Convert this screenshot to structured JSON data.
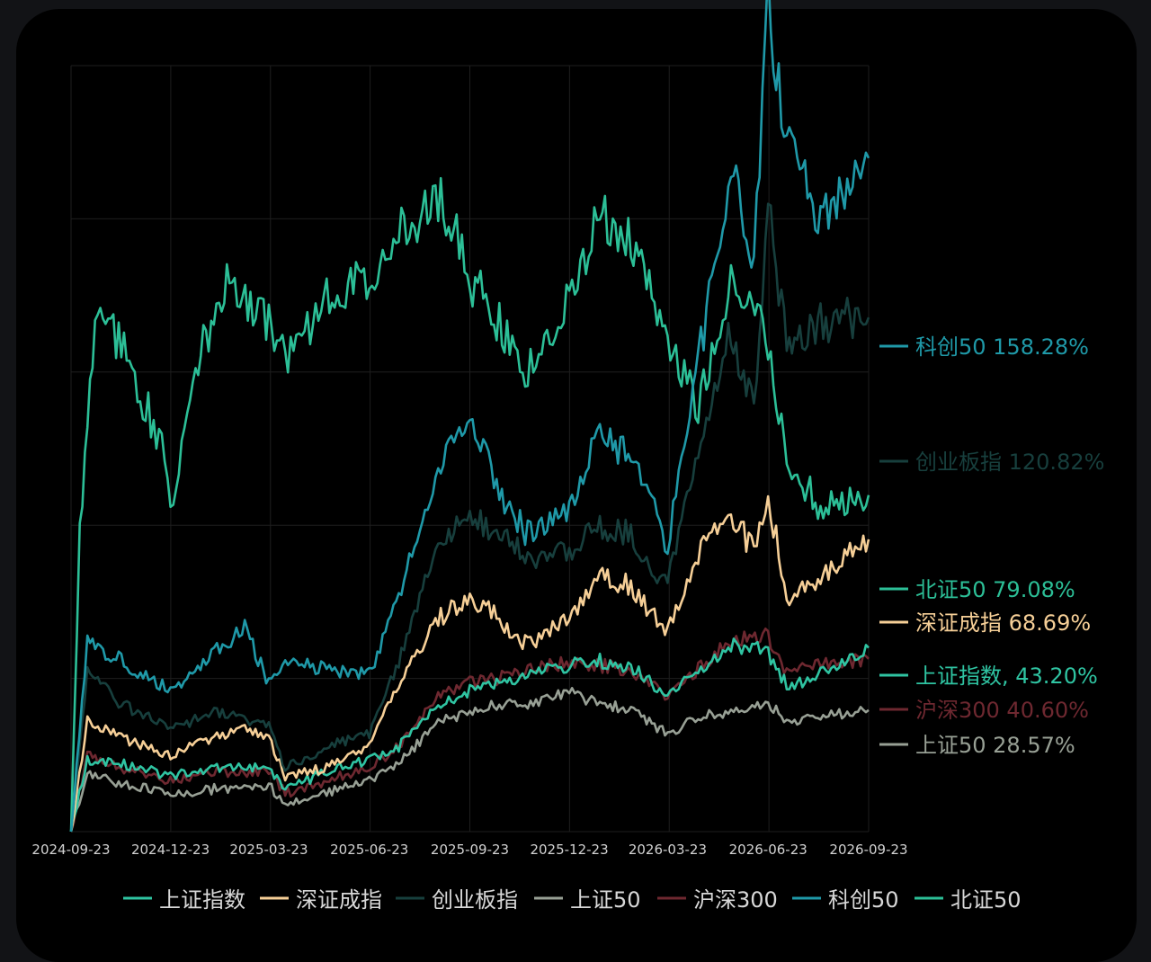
{
  "chart_data": {
    "type": "line",
    "title": "",
    "xlabel": "",
    "ylabel": "",
    "unit": "%",
    "x_start": "2024-09-23",
    "x_end": "2026-09-23",
    "x_ticks": [
      "2024-09-23",
      "2024-12-23",
      "2025-03-23",
      "2025-06-23",
      "2025-09-23",
      "2025-12-23",
      "2026-03-23",
      "2026-06-23",
      "2026-09-23"
    ],
    "ylim": [
      0,
      180
    ],
    "grid": true,
    "legend_position": "bottom",
    "legend_order": [
      "上证指数",
      "深证成指",
      "创业板指",
      "上证50",
      "沪深300",
      "科创50",
      "北证50"
    ],
    "series": [
      {
        "name": "上证指数",
        "color": "#2fc4a2",
        "end_label": "上证指数, 43.20%",
        "x": [
          "2024-09-23",
          "2024-10-08",
          "2024-11-08",
          "2024-12-23",
          "2025-02-01",
          "2025-03-23",
          "2025-04-07",
          "2025-05-15",
          "2025-06-23",
          "2025-07-20",
          "2025-08-25",
          "2025-09-23",
          "2025-10-20",
          "2025-11-15",
          "2025-12-23",
          "2026-01-20",
          "2026-02-15",
          "2026-03-23",
          "2026-04-20",
          "2026-05-20",
          "2026-06-23",
          "2026-07-10",
          "2026-08-10",
          "2026-09-23"
        ],
        "values": [
          0,
          17,
          16,
          13,
          15,
          15,
          10,
          14,
          17,
          20,
          30,
          33,
          35,
          37,
          39,
          40,
          39,
          32,
          38,
          44,
          42,
          34,
          37,
          43.2
        ]
      },
      {
        "name": "深证成指",
        "color": "#f6cf97",
        "end_label": "深证成指 68.69%",
        "x": [
          "2024-09-23",
          "2024-10-08",
          "2024-11-08",
          "2024-12-23",
          "2025-02-01",
          "2025-03-01",
          "2025-03-23",
          "2025-04-07",
          "2025-05-15",
          "2025-06-23",
          "2025-07-20",
          "2025-08-25",
          "2025-09-23",
          "2025-10-20",
          "2025-11-15",
          "2025-12-23",
          "2026-01-20",
          "2026-02-15",
          "2026-03-23",
          "2026-04-20",
          "2026-05-20",
          "2026-06-10",
          "2026-06-23",
          "2026-07-10",
          "2026-08-10",
          "2026-09-23"
        ],
        "values": [
          0,
          26,
          22,
          18,
          22,
          24,
          22,
          13,
          15,
          20,
          35,
          50,
          55,
          50,
          44,
          50,
          60,
          58,
          47,
          65,
          75,
          66,
          79,
          55,
          60,
          68.69
        ]
      },
      {
        "name": "创业板指",
        "color": "#173f3d",
        "end_label": "创业板指 120.82%",
        "x": [
          "2024-09-23",
          "2024-10-08",
          "2024-11-08",
          "2024-12-23",
          "2025-02-01",
          "2025-03-23",
          "2025-04-07",
          "2025-05-15",
          "2025-06-23",
          "2025-07-20",
          "2025-08-25",
          "2025-09-23",
          "2025-10-20",
          "2025-11-15",
          "2025-12-23",
          "2026-01-20",
          "2026-02-15",
          "2026-03-23",
          "2026-04-20",
          "2026-05-20",
          "2026-06-10",
          "2026-06-23",
          "2026-07-10",
          "2026-08-10",
          "2026-09-23"
        ],
        "values": [
          0,
          38,
          30,
          24,
          28,
          25,
          15,
          20,
          23,
          40,
          68,
          75,
          70,
          64,
          66,
          72,
          70,
          58,
          90,
          118,
          100,
          148,
          112,
          120,
          120.82
        ]
      },
      {
        "name": "上证50",
        "color": "#98a095",
        "end_label": "上证50 28.57%",
        "x": [
          "2024-09-23",
          "2024-10-08",
          "2024-11-08",
          "2024-12-23",
          "2025-02-01",
          "2025-03-23",
          "2025-04-07",
          "2025-05-15",
          "2025-06-23",
          "2025-07-20",
          "2025-08-25",
          "2025-09-23",
          "2025-10-20",
          "2025-11-15",
          "2025-12-23",
          "2026-01-20",
          "2026-02-15",
          "2026-03-23",
          "2026-04-20",
          "2026-05-20",
          "2026-06-23",
          "2026-07-10",
          "2026-08-10",
          "2026-09-23"
        ],
        "values": [
          0,
          14,
          11,
          9,
          10,
          11,
          6,
          9,
          12,
          16,
          26,
          28,
          30,
          30,
          33,
          30,
          29,
          23,
          27,
          28,
          30,
          26,
          27,
          28.57
        ]
      },
      {
        "name": "沪深300",
        "color": "#6e2830",
        "end_label": "沪深300 40.60%",
        "x": [
          "2024-09-23",
          "2024-10-08",
          "2024-11-08",
          "2024-12-23",
          "2025-02-01",
          "2025-03-23",
          "2025-04-07",
          "2025-05-15",
          "2025-06-23",
          "2025-07-20",
          "2025-08-25",
          "2025-09-23",
          "2025-10-20",
          "2025-11-15",
          "2025-12-23",
          "2026-01-20",
          "2026-02-15",
          "2026-03-23",
          "2026-04-20",
          "2026-05-20",
          "2026-06-23",
          "2026-07-10",
          "2026-08-10",
          "2026-09-23"
        ],
        "values": [
          0,
          18,
          15,
          12,
          14,
          14,
          9,
          12,
          15,
          20,
          32,
          35,
          36,
          38,
          40,
          39,
          38,
          32,
          38,
          45,
          46,
          38,
          39,
          40.6
        ]
      },
      {
        "name": "科创50",
        "color": "#1f99a8",
        "end_label": "科创50 158.28%",
        "x": [
          "2024-09-23",
          "2024-10-08",
          "2024-11-08",
          "2024-12-23",
          "2025-02-01",
          "2025-03-01",
          "2025-03-23",
          "2025-04-07",
          "2025-05-15",
          "2025-06-23",
          "2025-07-20",
          "2025-08-25",
          "2025-09-23",
          "2025-10-20",
          "2025-11-15",
          "2025-12-23",
          "2026-01-20",
          "2026-02-15",
          "2026-03-23",
          "2026-04-20",
          "2026-05-20",
          "2026-06-10",
          "2026-06-23",
          "2026-07-10",
          "2026-08-10",
          "2026-09-23"
        ],
        "values": [
          0,
          45,
          40,
          33,
          42,
          48,
          35,
          40,
          38,
          37,
          55,
          85,
          100,
          78,
          70,
          75,
          95,
          88,
          68,
          110,
          155,
          135,
          195,
          160,
          145,
          158.28
        ]
      },
      {
        "name": "北证50",
        "color": "#2cbf97",
        "end_label": "北证50 79.08%",
        "x": [
          "2024-09-23",
          "2024-10-01",
          "2024-10-15",
          "2024-11-08",
          "2024-12-15",
          "2024-12-23",
          "2025-01-15",
          "2025-02-15",
          "2025-03-23",
          "2025-04-07",
          "2025-05-15",
          "2025-06-23",
          "2025-07-20",
          "2025-08-25",
          "2025-09-23",
          "2025-10-20",
          "2025-11-15",
          "2025-12-23",
          "2026-01-20",
          "2026-02-15",
          "2026-03-23",
          "2026-04-20",
          "2026-05-20",
          "2026-06-23",
          "2026-07-10",
          "2026-08-10",
          "2026-09-23"
        ],
        "values": [
          0,
          70,
          120,
          115,
          90,
          75,
          110,
          130,
          120,
          110,
          125,
          130,
          140,
          150,
          130,
          120,
          108,
          125,
          145,
          140,
          115,
          100,
          130,
          115,
          88,
          76,
          79.08
        ]
      }
    ]
  }
}
